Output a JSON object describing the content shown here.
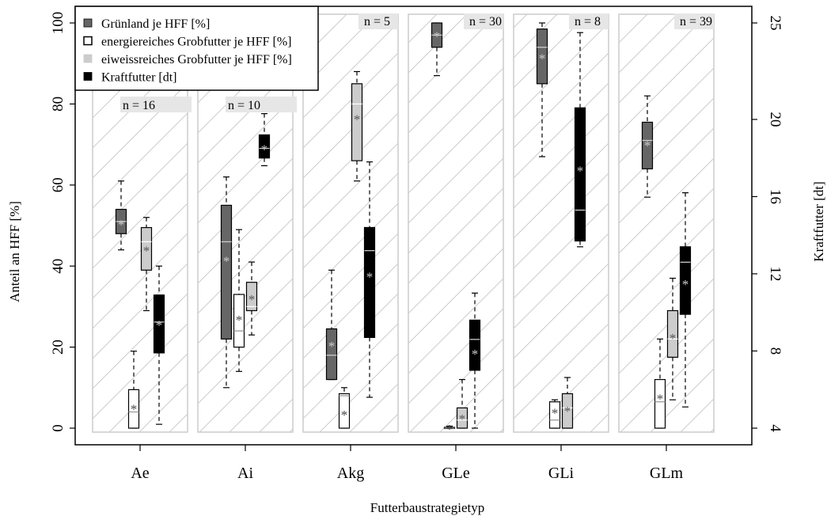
{
  "chart_data": {
    "type": "boxplot",
    "xlabel": "Futterbaustrategietyp",
    "ylabel": "Anteil an HFF [%]",
    "y2label": "Kraftfutter [dt]",
    "ylim": [
      0,
      100
    ],
    "y2lim": [
      4,
      25
    ],
    "yticks": [
      0,
      20,
      40,
      60,
      80,
      100
    ],
    "y2ticks": [
      4,
      8,
      12,
      16,
      20,
      25
    ],
    "categories": [
      "Ae",
      "Ai",
      "Akg",
      "GLe",
      "GLi",
      "GLm"
    ],
    "n_labels": [
      "n = 16",
      "n = 10",
      "n = 5",
      "n = 30",
      "n = 8",
      "n = 39"
    ],
    "mean_marker": "*",
    "legend_position": "top-left",
    "series": [
      {
        "name": "Grünland je HFF [%]",
        "axis": "left",
        "color": "#666666",
        "median_color": "#cccccc",
        "boxes": [
          {
            "whisker_low": 44,
            "q1": 48,
            "median": 51,
            "q3": 54,
            "whisker_high": 61,
            "mean": 50.5
          },
          {
            "whisker_low": 10,
            "q1": 22,
            "median": 46,
            "q3": 55,
            "whisker_high": 62,
            "mean": 41.5
          },
          {
            "whisker_low": 12,
            "q1": 12,
            "median": 18,
            "q3": 24.5,
            "whisker_high": 39,
            "mean": 20.5
          },
          {
            "whisker_low": 87,
            "q1": 94,
            "median": 97,
            "q3": 100,
            "whisker_high": 100,
            "mean": 97
          },
          {
            "whisker_low": 67,
            "q1": 85,
            "median": 94,
            "q3": 98.5,
            "whisker_high": 100,
            "mean": 91.5
          },
          {
            "whisker_low": 57,
            "q1": 64,
            "median": 71,
            "q3": 75.5,
            "whisker_high": 82,
            "mean": 70
          }
        ]
      },
      {
        "name": "energiereiches Grobfutter je HFF [%]",
        "axis": "left",
        "color": "#ffffff",
        "median_color": "#999999",
        "boxes": [
          {
            "whisker_low": 0,
            "q1": 0,
            "median": 4,
            "q3": 9.5,
            "whisker_high": 19,
            "mean": 5
          },
          {
            "whisker_low": 14,
            "q1": 20,
            "median": 24,
            "q3": 33,
            "whisker_high": 49,
            "mean": 27
          },
          {
            "whisker_low": 0,
            "q1": 0,
            "median": 8,
            "q3": 8.5,
            "whisker_high": 10,
            "mean": 3.5
          },
          {
            "whisker_low": 0,
            "q1": 0,
            "median": 0,
            "q3": 0.2,
            "whisker_high": 0.5,
            "mean": 0
          },
          {
            "whisker_low": 0,
            "q1": 0,
            "median": 2,
            "q3": 6.5,
            "whisker_high": 7,
            "mean": 4
          },
          {
            "whisker_low": 0,
            "q1": 0,
            "median": 6.5,
            "q3": 12,
            "whisker_high": 22,
            "mean": 7.5
          }
        ]
      },
      {
        "name": "eiweissreiches Grobfutter je HFF [%]",
        "axis": "left",
        "color": "#cccccc",
        "median_color": "#ffffff",
        "boxes": [
          {
            "whisker_low": 29,
            "q1": 39,
            "median": 46,
            "q3": 49.5,
            "whisker_high": 52,
            "mean": 44
          },
          {
            "whisker_low": 23,
            "q1": 29,
            "median": 30,
            "q3": 36,
            "whisker_high": 41,
            "mean": 32
          },
          {
            "whisker_low": 61,
            "q1": 66,
            "median": 80,
            "q3": 85,
            "whisker_high": 88,
            "mean": 76.5
          },
          {
            "whisker_low": 0,
            "q1": 0,
            "median": 2,
            "q3": 5,
            "whisker_high": 12,
            "mean": 2.5
          },
          {
            "whisker_low": 0,
            "q1": 0,
            "median": 5,
            "q3": 8.5,
            "whisker_high": 12.5,
            "mean": 4.5
          },
          {
            "whisker_low": 7,
            "q1": 17.5,
            "median": 22,
            "q3": 29,
            "whisker_high": 37,
            "mean": 22.5
          }
        ]
      },
      {
        "name": "Kraftfutter [dt]",
        "axis": "right",
        "color": "#000000",
        "median_color": "#cccccc",
        "boxes": [
          {
            "whisker_low": 4.2,
            "q1": 7.9,
            "median": 9.5,
            "q3": 10.9,
            "whisker_high": 12.4,
            "mean": 9.4
          },
          {
            "whisker_low": 17.6,
            "q1": 18.0,
            "median": 18.5,
            "q3": 19.2,
            "whisker_high": 20.3,
            "mean": 18.5
          },
          {
            "whisker_low": 5.6,
            "q1": 8.7,
            "median": 13.2,
            "q3": 14.4,
            "whisker_high": 17.8,
            "mean": 11.9
          },
          {
            "whisker_low": 4.0,
            "q1": 7.0,
            "median": 8.6,
            "q3": 9.6,
            "whisker_high": 11.0,
            "mean": 7.9
          },
          {
            "whisker_low": 13.4,
            "q1": 13.7,
            "median": 15.3,
            "q3": 20.6,
            "whisker_high": 24.5,
            "mean": 17.4
          },
          {
            "whisker_low": 5.1,
            "q1": 9.9,
            "median": 12.6,
            "q3": 13.4,
            "whisker_high": 16.2,
            "mean": 11.5
          }
        ]
      }
    ]
  }
}
